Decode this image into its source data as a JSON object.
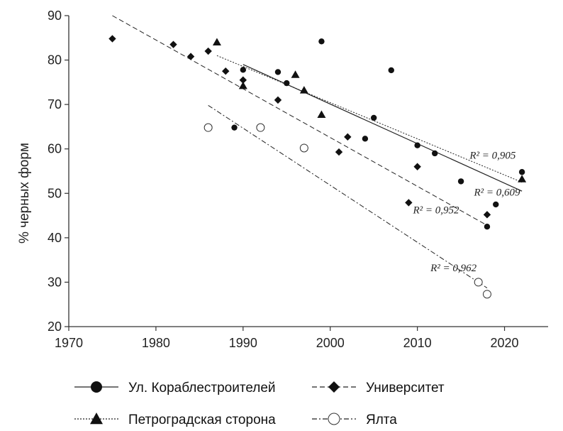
{
  "chart_data": {
    "type": "scatter",
    "ylabel": "% черных форм",
    "xlabel": "",
    "xlim": [
      1970,
      2025
    ],
    "ylim": [
      20,
      90
    ],
    "x_ticks": [
      "1970",
      "1980",
      "1990",
      "2000",
      "2010",
      "2020"
    ],
    "y_ticks": [
      "20",
      "30",
      "40",
      "50",
      "60",
      "70",
      "80",
      "90"
    ],
    "grid": false,
    "legend_position": "bottom",
    "series": [
      {
        "name": "Ул. Кораблестроителей",
        "marker": "circle-filled",
        "line": "solid",
        "points": [
          [
            1990,
            77.8
          ],
          [
            1989,
            64.8
          ],
          [
            1994,
            77.3
          ],
          [
            1995,
            74.8
          ],
          [
            1999,
            84.2
          ],
          [
            2004,
            62.3
          ],
          [
            2005,
            67.0
          ],
          [
            2007,
            77.7
          ],
          [
            2010,
            60.8
          ],
          [
            2012,
            59.0
          ],
          [
            2015,
            52.7
          ],
          [
            2018,
            42.5
          ],
          [
            2019,
            47.5
          ],
          [
            2022,
            54.8
          ]
        ],
        "trend": {
          "x": [
            1990,
            2022
          ],
          "y": [
            79.0,
            50.5
          ]
        },
        "r2_label": "R² = 0,609"
      },
      {
        "name": "Университет",
        "marker": "diamond-filled",
        "line": "dashed",
        "points": [
          [
            1975,
            84.8
          ],
          [
            1982,
            83.5
          ],
          [
            1984,
            80.8
          ],
          [
            1986,
            82.0
          ],
          [
            1988,
            77.5
          ],
          [
            1990,
            75.5
          ],
          [
            1994,
            71.0
          ],
          [
            2001,
            59.3
          ],
          [
            2002,
            62.7
          ],
          [
            2009,
            47.9
          ],
          [
            2010,
            56.0
          ],
          [
            2018,
            45.2
          ]
        ],
        "trend": {
          "x": [
            1975,
            2018
          ],
          "y": [
            90.0,
            42.8
          ]
        },
        "r2_label": "R² = 0,952"
      },
      {
        "name": "Петроградская сторона",
        "marker": "triangle-filled",
        "line": "dotted",
        "points": [
          [
            1987,
            84.0
          ],
          [
            1990,
            74.2
          ],
          [
            1996,
            76.7
          ],
          [
            1997,
            73.2
          ],
          [
            1999,
            67.7
          ],
          [
            2022,
            53.2
          ]
        ],
        "trend": {
          "x": [
            1987,
            2022
          ],
          "y": [
            81.0,
            52.5
          ]
        },
        "r2_label": "R² = 0,905"
      },
      {
        "name": "Ялта",
        "marker": "circle-open",
        "line": "dash-dot",
        "points": [
          [
            1986,
            64.8
          ],
          [
            1992,
            64.8
          ],
          [
            1997,
            60.2
          ],
          [
            2017,
            30.0
          ],
          [
            2018,
            27.3
          ]
        ],
        "trend": {
          "x": [
            1986,
            2018
          ],
          "y": [
            69.8,
            28.7
          ]
        },
        "r2_label": "R² = 0,962"
      }
    ]
  }
}
